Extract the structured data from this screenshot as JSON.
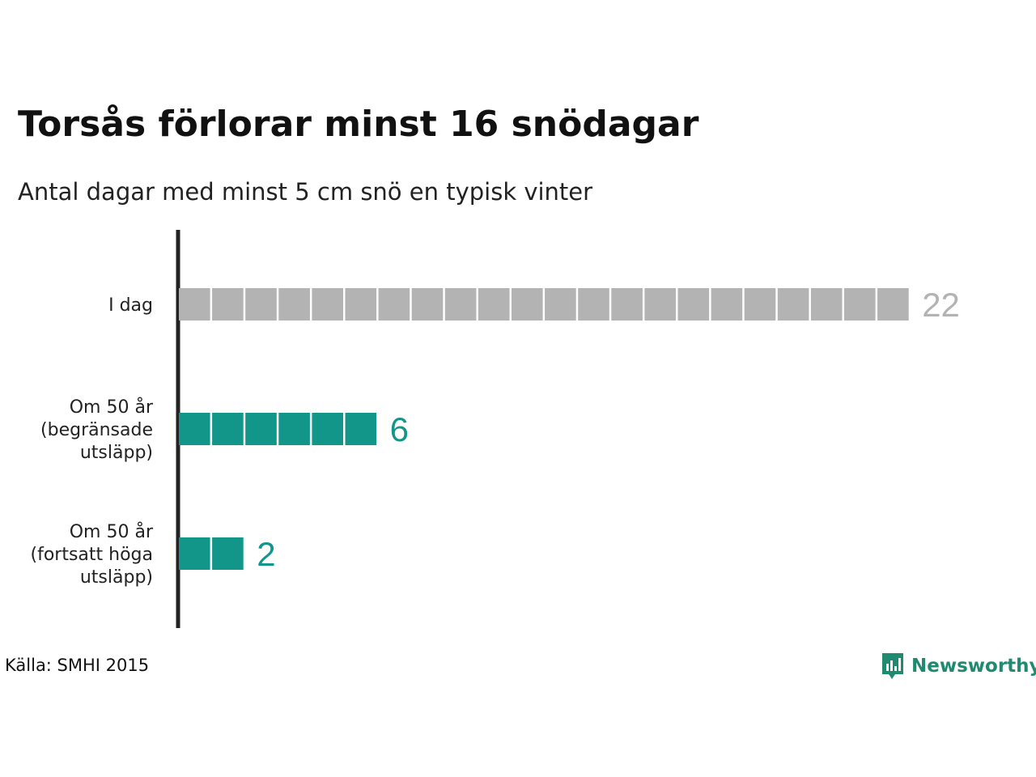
{
  "colors": {
    "today": "#b3b3b3",
    "future": "#13968a",
    "axis": "#222222",
    "brand": "#1f8a70"
  },
  "chart_data": {
    "type": "bar",
    "orientation": "horizontal",
    "style": "unit-squares",
    "title": "Torsås förlorar minst 16 snödagar",
    "subtitle": "Antal dagar med minst 5 cm snö en typisk vinter",
    "xlabel": "",
    "ylabel": "",
    "grid": false,
    "categories": [
      [
        "I dag"
      ],
      [
        "Om 50 år",
        "(begränsade",
        "utsläpp)"
      ],
      [
        "Om 50 år",
        "(fortsatt höga",
        "utsläpp)"
      ]
    ],
    "values": [
      22,
      6,
      2
    ],
    "bar_colors": [
      "#b3b3b3",
      "#13968a",
      "#13968a"
    ]
  },
  "source": "Källa: SMHI 2015",
  "brand": {
    "name": "Newsworthy",
    "icon": "newsworthy-logo-icon"
  }
}
